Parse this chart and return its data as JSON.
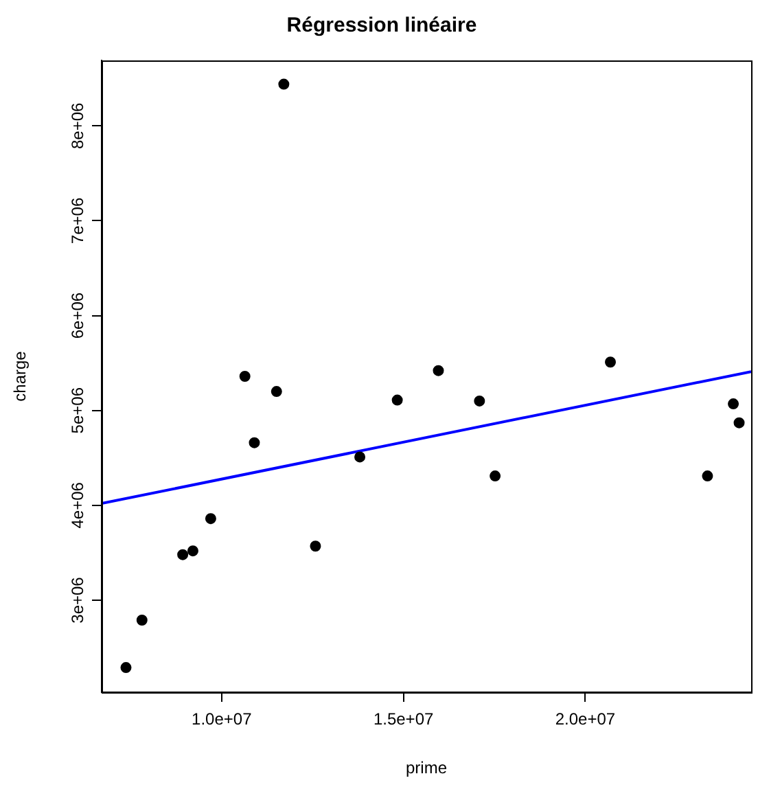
{
  "chart_data": {
    "type": "scatter",
    "title": "Régression linéaire",
    "xlabel": "prime",
    "ylabel": "charge",
    "xlim": [
      6700000,
      24560000
    ],
    "ylim": [
      2030000,
      8690000
    ],
    "xticks": [
      {
        "value": 10000000,
        "label": "1.0e+07"
      },
      {
        "value": 15000000,
        "label": "1.5e+07"
      },
      {
        "value": 20000000,
        "label": "2.0e+07"
      }
    ],
    "yticks": [
      {
        "value": 3000000,
        "label": "3e+06"
      },
      {
        "value": 4000000,
        "label": "4e+06"
      },
      {
        "value": 5000000,
        "label": "5e+06"
      },
      {
        "value": 6000000,
        "label": "6e+06"
      },
      {
        "value": 7000000,
        "label": "7e+06"
      },
      {
        "value": 8000000,
        "label": "8e+06"
      }
    ],
    "grid": false,
    "legend": false,
    "series": [
      {
        "color": "#000000",
        "marker": "circle",
        "x": [
          7370000,
          7810000,
          8930000,
          9210000,
          9700000,
          10640000,
          10900000,
          11510000,
          11710000,
          12580000,
          13800000,
          14830000,
          15960000,
          17090000,
          17520000,
          20690000,
          23360000,
          24070000,
          24230000
        ],
        "values": [
          2290000,
          2790000,
          3480000,
          3520000,
          3860000,
          5360000,
          4660000,
          5200000,
          8440000,
          3570000,
          4510000,
          5110000,
          5420000,
          5100000,
          4310000,
          5510000,
          4310000,
          5070000,
          4870000
        ]
      },
      {
        "type": "line",
        "color": "#0000ff",
        "marker": "none",
        "line_style": "solid",
        "x": [
          6700000,
          24560000
        ],
        "values": [
          4020000,
          5410000
        ]
      }
    ]
  }
}
